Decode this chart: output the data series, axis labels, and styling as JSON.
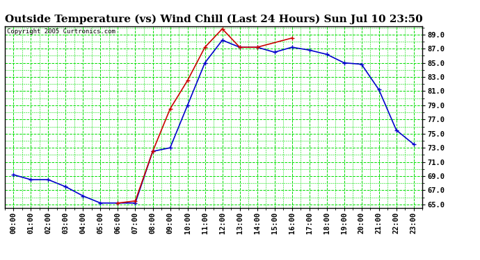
{
  "title": "Outside Temperature (vs) Wind Chill (Last 24 Hours) Sun Jul 10 23:50",
  "copyright": "Copyright 2005 Curtronics.com",
  "background_color": "#ffffff",
  "plot_bg_color": "#ffffff",
  "grid_color": "#00dd00",
  "x_labels": [
    "00:00",
    "01:00",
    "02:00",
    "03:00",
    "04:00",
    "05:00",
    "06:00",
    "07:00",
    "08:00",
    "09:00",
    "10:00",
    "11:00",
    "12:00",
    "13:00",
    "14:00",
    "15:00",
    "16:00",
    "17:00",
    "18:00",
    "19:00",
    "20:00",
    "21:00",
    "22:00",
    "23:00"
  ],
  "outside_temp": [
    69.2,
    68.5,
    68.5,
    67.5,
    66.2,
    65.2,
    65.2,
    65.2,
    72.5,
    73.0,
    79.0,
    85.0,
    88.2,
    87.2,
    87.2,
    86.5,
    87.2,
    86.8,
    86.2,
    85.0,
    84.8,
    81.2,
    75.5,
    73.5
  ],
  "wind_chill": [
    null,
    null,
    null,
    null,
    null,
    null,
    65.2,
    65.5,
    72.5,
    78.5,
    82.5,
    87.2,
    89.8,
    87.2,
    87.2,
    null,
    88.5,
    null,
    null,
    null,
    null,
    null,
    null,
    null
  ],
  "outside_color": "#0000cc",
  "wind_chill_color": "#cc0000",
  "ylim": [
    64.5,
    90.2
  ],
  "yticks": [
    65.0,
    67.0,
    69.0,
    71.0,
    73.0,
    75.0,
    77.0,
    79.0,
    81.0,
    83.0,
    85.0,
    87.0,
    89.0
  ],
  "markersize": 3,
  "linewidth": 1.2,
  "title_fontsize": 11,
  "tick_fontsize": 7.5
}
